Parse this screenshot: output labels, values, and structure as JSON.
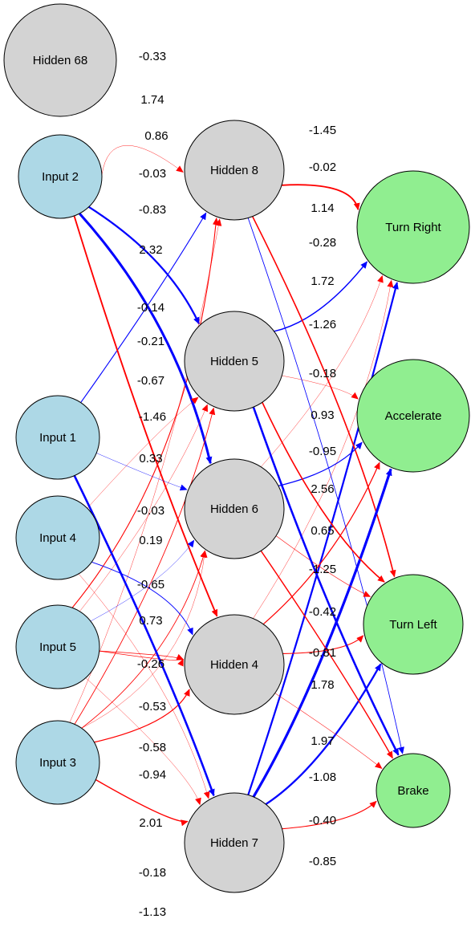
{
  "nodes": [
    {
      "id": "hidden68",
      "label": "Hidden 68",
      "fill": "#d3d3d3"
    },
    {
      "id": "input2",
      "label": "Input 2",
      "fill": "#add8e6"
    },
    {
      "id": "input1",
      "label": "Input 1",
      "fill": "#add8e6"
    },
    {
      "id": "input4",
      "label": "Input 4",
      "fill": "#add8e6"
    },
    {
      "id": "input5",
      "label": "Input 5",
      "fill": "#add8e6"
    },
    {
      "id": "input3",
      "label": "Input 3",
      "fill": "#add8e6"
    },
    {
      "id": "hidden8",
      "label": "Hidden 8",
      "fill": "#d3d3d3"
    },
    {
      "id": "hidden5",
      "label": "Hidden 5",
      "fill": "#d3d3d3"
    },
    {
      "id": "hidden6",
      "label": "Hidden 6",
      "fill": "#d3d3d3"
    },
    {
      "id": "hidden4",
      "label": "Hidden 4",
      "fill": "#d3d3d3"
    },
    {
      "id": "hidden7",
      "label": "Hidden 7",
      "fill": "#d3d3d3"
    },
    {
      "id": "turnright",
      "label": "Turn Right",
      "fill": "#90ee90"
    },
    {
      "id": "accelerate",
      "label": "Accelerate",
      "fill": "#90ee90"
    },
    {
      "id": "turnleft",
      "label": "Turn Left",
      "fill": "#90ee90"
    },
    {
      "id": "brake",
      "label": "Brake",
      "fill": "#90ee90"
    }
  ],
  "edges": [
    {
      "from": "input2",
      "to": "hidden8",
      "weight": "-0.33"
    },
    {
      "from": "input2",
      "to": "hidden5",
      "weight": "1.74"
    },
    {
      "from": "input1",
      "to": "hidden8",
      "weight": "0.86"
    },
    {
      "from": "input3",
      "to": "hidden8",
      "weight": "-0.03"
    },
    {
      "from": "input5",
      "to": "hidden8",
      "weight": "-0.83"
    },
    {
      "from": "input2",
      "to": "hidden6",
      "weight": "2.32"
    },
    {
      "from": "input4",
      "to": "hidden5",
      "weight": "-0.14"
    },
    {
      "from": "input5",
      "to": "hidden5",
      "weight": "-0.21"
    },
    {
      "from": "input3",
      "to": "hidden5",
      "weight": "-0.67"
    },
    {
      "from": "input2",
      "to": "hidden4",
      "weight": "-1.46"
    },
    {
      "from": "input1",
      "to": "hidden6",
      "weight": "0.33"
    },
    {
      "from": "input3",
      "to": "hidden6",
      "weight": "-0.03"
    },
    {
      "from": "input5",
      "to": "hidden6",
      "weight": "0.19"
    },
    {
      "from": "input3",
      "to": "hidden6",
      "weight": "-0.65"
    },
    {
      "from": "input4",
      "to": "hidden4",
      "weight": "0.73"
    },
    {
      "from": "input4",
      "to": "hidden7",
      "weight": "-0.26"
    },
    {
      "from": "input5",
      "to": "hidden4",
      "weight": "-0.53"
    },
    {
      "from": "input5",
      "to": "hidden4",
      "weight": "-0.58"
    },
    {
      "from": "input3",
      "to": "hidden4",
      "weight": "-0.94"
    },
    {
      "from": "input1",
      "to": "hidden7",
      "weight": "2.01"
    },
    {
      "from": "input5",
      "to": "hidden7",
      "weight": "-0.18"
    },
    {
      "from": "input3",
      "to": "hidden7",
      "weight": "-1.13"
    },
    {
      "from": "hidden8",
      "to": "turnright",
      "weight": "-1.45"
    },
    {
      "from": "hidden6",
      "to": "turnright",
      "weight": "-0.02"
    },
    {
      "from": "hidden5",
      "to": "turnright",
      "weight": "1.14"
    },
    {
      "from": "hidden4",
      "to": "turnright",
      "weight": "-0.28"
    },
    {
      "from": "hidden7",
      "to": "turnright",
      "weight": "1.72"
    },
    {
      "from": "hidden8",
      "to": "turnleft",
      "weight": "-1.26"
    },
    {
      "from": "hidden5",
      "to": "accelerate",
      "weight": "-0.18"
    },
    {
      "from": "hidden6",
      "to": "accelerate",
      "weight": "0.93"
    },
    {
      "from": "hidden4",
      "to": "accelerate",
      "weight": "-0.95"
    },
    {
      "from": "hidden7",
      "to": "accelerate",
      "weight": "2.56"
    },
    {
      "from": "hidden8",
      "to": "brake",
      "weight": "0.65"
    },
    {
      "from": "hidden5",
      "to": "turnleft",
      "weight": "-1.25"
    },
    {
      "from": "hidden6",
      "to": "turnleft",
      "weight": "-0.42"
    },
    {
      "from": "hidden4",
      "to": "turnleft",
      "weight": "-0.81"
    },
    {
      "from": "hidden7",
      "to": "turnleft",
      "weight": "1.78"
    },
    {
      "from": "hidden5",
      "to": "brake",
      "weight": "1.97"
    },
    {
      "from": "hidden6",
      "to": "brake",
      "weight": "-1.08"
    },
    {
      "from": "hidden4",
      "to": "brake",
      "weight": "-0.40"
    },
    {
      "from": "hidden7",
      "to": "brake",
      "weight": "-0.85"
    }
  ],
  "colors": {
    "positive": "#0000ff",
    "negative": "#ff0000",
    "stroke": "#000000"
  }
}
